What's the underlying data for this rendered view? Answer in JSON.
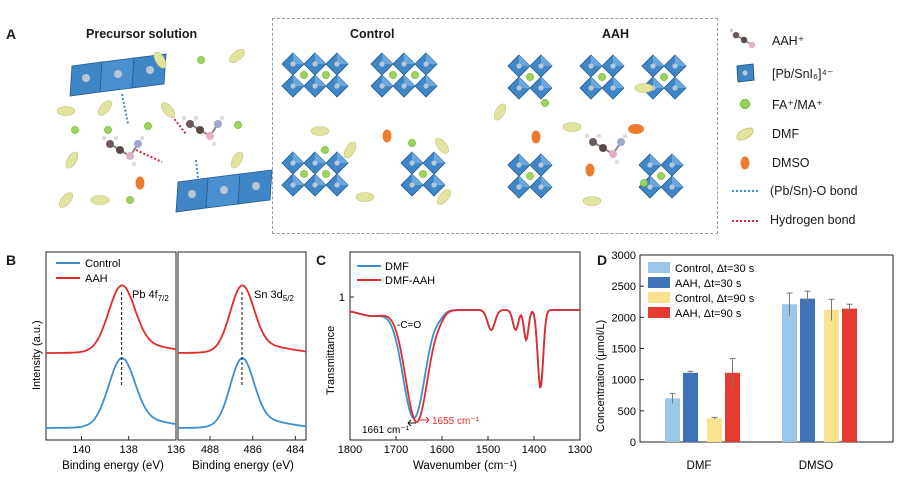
{
  "panels": {
    "a": "A",
    "b": "B",
    "c": "C",
    "d": "D"
  },
  "panel_a": {
    "title_precursor": "Precursor solution",
    "title_control": "Control",
    "title_aah": "AAH",
    "legend": [
      {
        "label": "AAH⁺",
        "icon": "aah-molecule-icon"
      },
      {
        "label": "[Pb/SnI₆]⁴⁻",
        "icon": "octahedron-icon"
      },
      {
        "label": "FA⁺/MA⁺",
        "icon": "cation-icon"
      },
      {
        "label": "DMF",
        "icon": "dmf-icon"
      },
      {
        "label": "DMSO",
        "icon": "dmso-icon"
      },
      {
        "label": "(Pb/Sn)-O bond",
        "icon": "blue-dotted-line-icon"
      },
      {
        "label": "Hydrogen bond",
        "icon": "red-dotted-line-icon"
      }
    ],
    "colors": {
      "octahedron": "#3f86c6",
      "cation": "#9bd45a",
      "dmf": "#dfe19a",
      "dmso": "#ee7a2c",
      "pb_o_bond": "#3a8fd0",
      "h_bond": "#d7263d"
    }
  },
  "chart_data": [
    {
      "id": "B",
      "type": "line",
      "legend": [
        "Control",
        "AAH"
      ],
      "colors": {
        "Control": "#3b8fd1",
        "AAH": "#e32b2b"
      },
      "ylabel": "Intensity (a.u.)",
      "xlabel": "Binding energy (eV)",
      "subplots": [
        {
          "annotation": "Pb 4f",
          "annotation_sub": "7/2",
          "xlim": [
            141.5,
            136
          ],
          "xticks": [
            "140",
            "138",
            "136"
          ],
          "peak_x": 138.3,
          "peak_width": 0.55
        },
        {
          "annotation": "Sn 3d",
          "annotation_sub": "5/2",
          "xlim": [
            489.5,
            483.5
          ],
          "xticks": [
            "488",
            "486",
            "484"
          ],
          "peak_x": 486.5,
          "peak_width": 0.55
        }
      ]
    },
    {
      "id": "C",
      "type": "line",
      "series": [
        {
          "name": "DMF",
          "color": "#3b8fd1"
        },
        {
          "name": "DMF-AAH",
          "color": "#e32b2b"
        }
      ],
      "xlabel": "Wavenumber (cm⁻¹)",
      "ylabel": "Transmittance",
      "xlim": [
        1800,
        1300
      ],
      "xticks": [
        "1800",
        "1700",
        "1600",
        "1500",
        "1400",
        "1300"
      ],
      "ytick": "1",
      "annotations": {
        "bond": "-C=O",
        "dmf_peak": "1661 cm⁻¹",
        "aah_peak": "1655 cm⁻¹"
      }
    },
    {
      "id": "D",
      "type": "bar",
      "categories": [
        "DMF",
        "DMSO"
      ],
      "ylabel": "Concentration (μmol/L)",
      "ylim": [
        0,
        3000
      ],
      "yticks": [
        "0",
        "500",
        "1000",
        "1500",
        "2000",
        "2500",
        "3000"
      ],
      "series": [
        {
          "name": "Control, Δt=30 s",
          "color": "#9cc6e8",
          "values": [
            700,
            2210
          ],
          "errors": [
            80,
            180
          ]
        },
        {
          "name": "AAH, Δt=30 s",
          "color": "#3e74b7",
          "values": [
            1110,
            2300
          ],
          "errors": [
            25,
            120
          ]
        },
        {
          "name": "Control, Δt=90 s",
          "color": "#fbe38e",
          "values": [
            380,
            2120
          ],
          "errors": [
            15,
            170
          ]
        },
        {
          "name": "AAH, Δt=90 s",
          "color": "#e53a2f",
          "values": [
            1110,
            2140
          ],
          "errors": [
            230,
            70
          ]
        }
      ]
    }
  ]
}
